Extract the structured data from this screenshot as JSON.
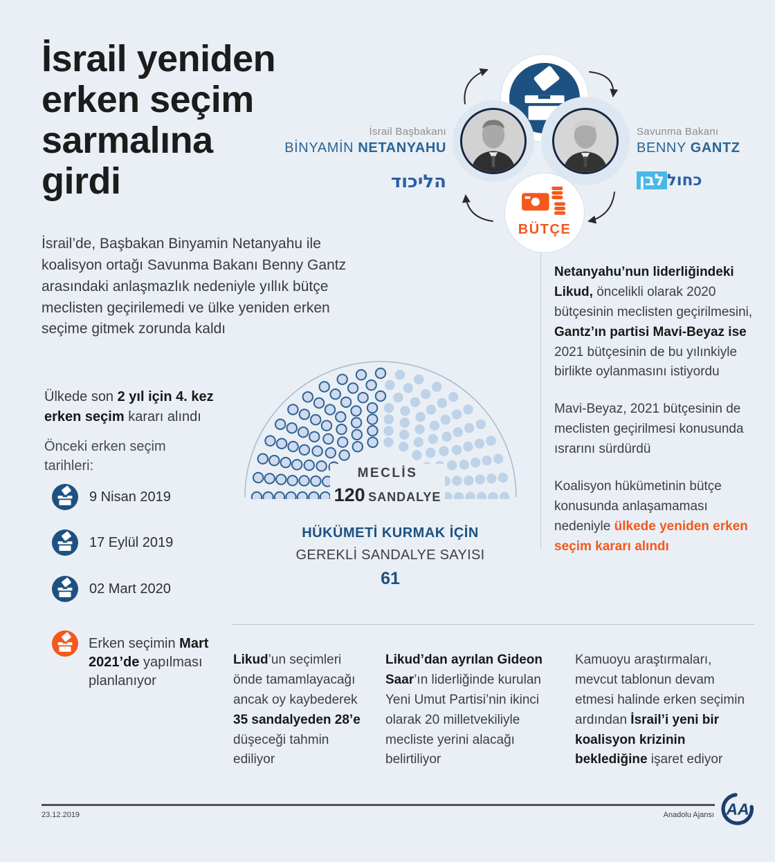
{
  "page": {
    "background": "#e9eff5",
    "date": "23.12.2019",
    "agency": "Anadolu Ajansı"
  },
  "colors": {
    "navy": "#1d5181",
    "name_blue": "#2a6496",
    "orange": "#f4581c",
    "seat_outlined_fill": "#cfdaee",
    "seat_outlined_stroke": "#2d6293",
    "seat_plain_fill": "#bed2e8"
  },
  "icons": {
    "ballot_box": "ballot-box-icon",
    "money": "money-budget-icon",
    "cycle_arrows": "curved-arrow-icon",
    "aa_logo": "anadolu-agency-logo"
  },
  "title": "İsrail yeniden\nerken seçim\nsarmalına\ngirdi",
  "intro": "İsrail’de, Başbakan Binyamin Netanyahu ile koalisyon ortağı Savunma Bakanı Benny Gantz arasındaki anlaşmazlık nedeniyle yıllık bütçe meclisten geçirilemedi ve ülke yeniden erken seçime gitmek zorunda kaldı",
  "cycle": {
    "left_person": {
      "role": "İsrail Başbakanı",
      "first_name": "BİNYAMİN",
      "last_name": "NETANYAHU",
      "party_logo": "הליכוד"
    },
    "right_person": {
      "role": "Savunma Bakanı",
      "first_name": "BENNY",
      "last_name": "GANTZ",
      "party_logo_word1": "כחול",
      "party_logo_word2": "לבן"
    },
    "budget_label": "BÜTÇE"
  },
  "facts": {
    "fact1": [
      {
        "t": "Ülkede son "
      },
      {
        "t": "2 yıl için 4. kez erken seçim",
        "b": 1
      },
      {
        "t": " kararı alındı"
      }
    ],
    "fact2": "Önceki erken seçim tarihleri:",
    "timeline": [
      {
        "date": "9 Nisan 2019"
      },
      {
        "date": "17 Eylül 2019"
      },
      {
        "date": "02 Mart 2020"
      }
    ],
    "planned": [
      {
        "t": "Erken seçimin "
      },
      {
        "t": "Mart 2021’de",
        "b": 1
      },
      {
        "t": " yapılması planlanıyor"
      }
    ]
  },
  "chart_data": {
    "type": "parliament-seats",
    "title": "MECLİS",
    "total_seats": 120,
    "total_label": "120",
    "total_unit": "SANDALYE",
    "highlighted_seats": 61,
    "plain_seats": 59,
    "majority_heading_line1": "HÜKÜMETİ KURMAK İÇİN",
    "majority_heading_line2": "GEREKLİ SANDALYE SAYISI",
    "majority_value": "61",
    "legend_note": "61 of 120 seats drawn with outline, remainder flat light blue",
    "layout": "semicircle hemicycle, 7 rows"
  },
  "right_column": {
    "p1": [
      {
        "t": "Netanyahu’nun liderliğindeki Likud,",
        "b": 1
      },
      {
        "t": " öncelikli olarak 2020 bütçesinin meclisten geçirilmesini, "
      },
      {
        "t": "Gantz’ın partisi Mavi-Beyaz ise",
        "b": 1
      },
      {
        "t": " 2021 bütçesinin de bu yılınkiyle birlikte oylanmasını istiyordu"
      }
    ],
    "p2": [
      {
        "t": "Mavi-Beyaz, 2021 bütçesinin de meclisten geçirilmesi konusunda ısrarını sürdürdü"
      }
    ],
    "p3": [
      {
        "t": "Koalisyon hükümetinin bütçe konusunda anlaşamaması nedeniyle "
      },
      {
        "t": "ülkede yeniden erken seçim kararı alındı",
        "b": 1,
        "o": 1
      }
    ]
  },
  "bottom_columns": {
    "c1": [
      {
        "t": "Likud",
        "b": 1
      },
      {
        "t": "’un seçimleri önde tamamlayacağı ancak oy kaybederek "
      },
      {
        "t": "35 sandalyeden 28’e",
        "b": 1
      },
      {
        "t": " düşeceği tahmin ediliyor"
      }
    ],
    "c2": [
      {
        "t": "Likud’dan ayrılan Gideon Saar",
        "b": 1
      },
      {
        "t": "’ın liderliğinde kurulan Yeni Umut Partisi’nin ikinci olarak 20 milletvekiliyle mecliste yerini alacağı belirtiliyor"
      }
    ],
    "c3": [
      {
        "t": "Kamuoyu araştırmaları, mevcut tablonun devam etmesi halinde erken seçimin ardından "
      },
      {
        "t": "İsrail’i yeni bir koalisyon krizinin beklediğine",
        "b": 1
      },
      {
        "t": " işaret ediyor"
      }
    ]
  }
}
